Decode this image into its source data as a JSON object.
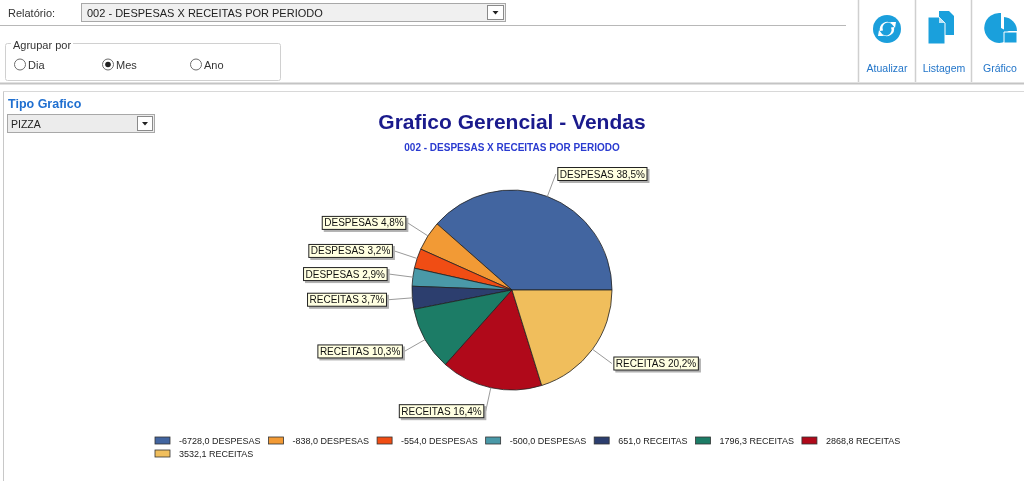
{
  "chart_data": {
    "type": "pie",
    "title": "Grafico Gerencial - Vendas",
    "subtitle": "002 - DESPESAS X RECEITAS POR PERIODO",
    "categories": [
      "-6728,0 DESPESAS",
      "-838,0 DESPESAS",
      "-554,0 DESPESAS",
      "-500,0 DESPESAS",
      "651,0 RECEITAS",
      "1796,3 RECEITAS",
      "2868,8 RECEITAS",
      "3532,1 RECEITAS"
    ],
    "values": [
      38.5,
      4.8,
      3.2,
      2.9,
      3.7,
      10.3,
      16.4,
      20.2
    ],
    "colors": [
      "#4265a0",
      "#f29a35",
      "#f04d14",
      "#4a99a8",
      "#2c3e6e",
      "#1c7c66",
      "#b0091a",
      "#f0be5c"
    ],
    "value_labels": [
      "DESPESAS 38,5%",
      "DESPESAS 4,8%",
      "DESPESAS 3,2%",
      "DESPESAS 2,9%",
      "RECEITAS 3,7%",
      "RECEITAS 10,3%",
      "RECEITAS 16,4%",
      "RECEITAS 20,2%"
    ],
    "legend": "bottom",
    "annotations": [
      "Relatório:",
      "002 - DESPESAS X RECEITAS POR PERIODO",
      "Agrupar por",
      "Dia",
      "Mes",
      "Ano",
      "Atualizar",
      "Listagem",
      "Gráfico",
      "Tipo Grafico",
      "PIZZA"
    ]
  }
}
